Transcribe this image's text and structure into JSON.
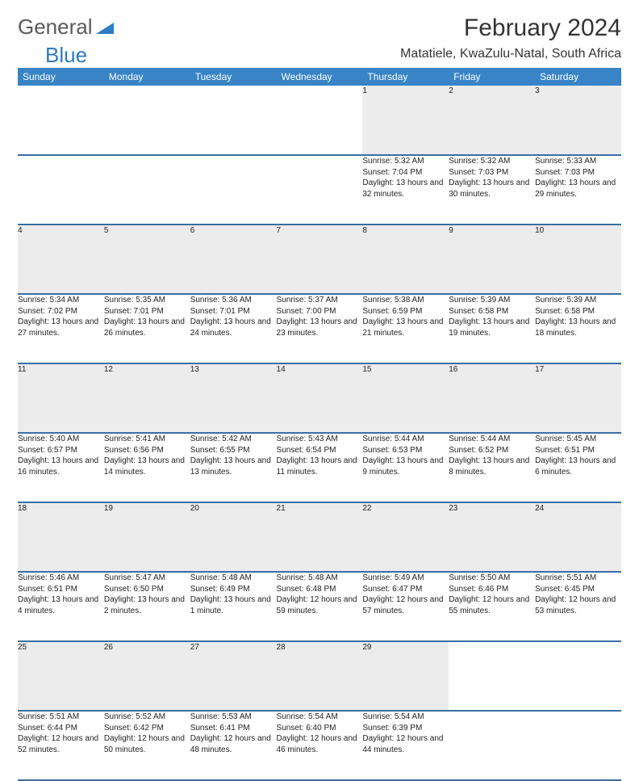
{
  "logo": {
    "name": "General",
    "sub": "Blue"
  },
  "title": "February 2024",
  "location": "Matatiele, KwaZulu-Natal, South Africa",
  "header_bg": "#3884c7",
  "days_of_week": [
    "Sunday",
    "Monday",
    "Tuesday",
    "Wednesday",
    "Thursday",
    "Friday",
    "Saturday"
  ],
  "weeks": [
    [
      null,
      null,
      null,
      null,
      {
        "n": "1",
        "sunrise": "Sunrise: 5:32 AM",
        "sunset": "Sunset: 7:04 PM",
        "daylight": "Daylight: 13 hours and 32 minutes."
      },
      {
        "n": "2",
        "sunrise": "Sunrise: 5:32 AM",
        "sunset": "Sunset: 7:03 PM",
        "daylight": "Daylight: 13 hours and 30 minutes."
      },
      {
        "n": "3",
        "sunrise": "Sunrise: 5:33 AM",
        "sunset": "Sunset: 7:03 PM",
        "daylight": "Daylight: 13 hours and 29 minutes."
      }
    ],
    [
      {
        "n": "4",
        "sunrise": "Sunrise: 5:34 AM",
        "sunset": "Sunset: 7:02 PM",
        "daylight": "Daylight: 13 hours and 27 minutes."
      },
      {
        "n": "5",
        "sunrise": "Sunrise: 5:35 AM",
        "sunset": "Sunset: 7:01 PM",
        "daylight": "Daylight: 13 hours and 26 minutes."
      },
      {
        "n": "6",
        "sunrise": "Sunrise: 5:36 AM",
        "sunset": "Sunset: 7:01 PM",
        "daylight": "Daylight: 13 hours and 24 minutes."
      },
      {
        "n": "7",
        "sunrise": "Sunrise: 5:37 AM",
        "sunset": "Sunset: 7:00 PM",
        "daylight": "Daylight: 13 hours and 23 minutes."
      },
      {
        "n": "8",
        "sunrise": "Sunrise: 5:38 AM",
        "sunset": "Sunset: 6:59 PM",
        "daylight": "Daylight: 13 hours and 21 minutes."
      },
      {
        "n": "9",
        "sunrise": "Sunrise: 5:39 AM",
        "sunset": "Sunset: 6:58 PM",
        "daylight": "Daylight: 13 hours and 19 minutes."
      },
      {
        "n": "10",
        "sunrise": "Sunrise: 5:39 AM",
        "sunset": "Sunset: 6:58 PM",
        "daylight": "Daylight: 13 hours and 18 minutes."
      }
    ],
    [
      {
        "n": "11",
        "sunrise": "Sunrise: 5:40 AM",
        "sunset": "Sunset: 6:57 PM",
        "daylight": "Daylight: 13 hours and 16 minutes."
      },
      {
        "n": "12",
        "sunrise": "Sunrise: 5:41 AM",
        "sunset": "Sunset: 6:56 PM",
        "daylight": "Daylight: 13 hours and 14 minutes."
      },
      {
        "n": "13",
        "sunrise": "Sunrise: 5:42 AM",
        "sunset": "Sunset: 6:55 PM",
        "daylight": "Daylight: 13 hours and 13 minutes."
      },
      {
        "n": "14",
        "sunrise": "Sunrise: 5:43 AM",
        "sunset": "Sunset: 6:54 PM",
        "daylight": "Daylight: 13 hours and 11 minutes."
      },
      {
        "n": "15",
        "sunrise": "Sunrise: 5:44 AM",
        "sunset": "Sunset: 6:53 PM",
        "daylight": "Daylight: 13 hours and 9 minutes."
      },
      {
        "n": "16",
        "sunrise": "Sunrise: 5:44 AM",
        "sunset": "Sunset: 6:52 PM",
        "daylight": "Daylight: 13 hours and 8 minutes."
      },
      {
        "n": "17",
        "sunrise": "Sunrise: 5:45 AM",
        "sunset": "Sunset: 6:51 PM",
        "daylight": "Daylight: 13 hours and 6 minutes."
      }
    ],
    [
      {
        "n": "18",
        "sunrise": "Sunrise: 5:46 AM",
        "sunset": "Sunset: 6:51 PM",
        "daylight": "Daylight: 13 hours and 4 minutes."
      },
      {
        "n": "19",
        "sunrise": "Sunrise: 5:47 AM",
        "sunset": "Sunset: 6:50 PM",
        "daylight": "Daylight: 13 hours and 2 minutes."
      },
      {
        "n": "20",
        "sunrise": "Sunrise: 5:48 AM",
        "sunset": "Sunset: 6:49 PM",
        "daylight": "Daylight: 13 hours and 1 minute."
      },
      {
        "n": "21",
        "sunrise": "Sunrise: 5:48 AM",
        "sunset": "Sunset: 6:48 PM",
        "daylight": "Daylight: 12 hours and 59 minutes."
      },
      {
        "n": "22",
        "sunrise": "Sunrise: 5:49 AM",
        "sunset": "Sunset: 6:47 PM",
        "daylight": "Daylight: 12 hours and 57 minutes."
      },
      {
        "n": "23",
        "sunrise": "Sunrise: 5:50 AM",
        "sunset": "Sunset: 6:46 PM",
        "daylight": "Daylight: 12 hours and 55 minutes."
      },
      {
        "n": "24",
        "sunrise": "Sunrise: 5:51 AM",
        "sunset": "Sunset: 6:45 PM",
        "daylight": "Daylight: 12 hours and 53 minutes."
      }
    ],
    [
      {
        "n": "25",
        "sunrise": "Sunrise: 5:51 AM",
        "sunset": "Sunset: 6:44 PM",
        "daylight": "Daylight: 12 hours and 52 minutes."
      },
      {
        "n": "26",
        "sunrise": "Sunrise: 5:52 AM",
        "sunset": "Sunset: 6:42 PM",
        "daylight": "Daylight: 12 hours and 50 minutes."
      },
      {
        "n": "27",
        "sunrise": "Sunrise: 5:53 AM",
        "sunset": "Sunset: 6:41 PM",
        "daylight": "Daylight: 12 hours and 48 minutes."
      },
      {
        "n": "28",
        "sunrise": "Sunrise: 5:54 AM",
        "sunset": "Sunset: 6:40 PM",
        "daylight": "Daylight: 12 hours and 46 minutes."
      },
      {
        "n": "29",
        "sunrise": "Sunrise: 5:54 AM",
        "sunset": "Sunset: 6:39 PM",
        "daylight": "Daylight: 12 hours and 44 minutes."
      },
      null,
      null
    ]
  ]
}
